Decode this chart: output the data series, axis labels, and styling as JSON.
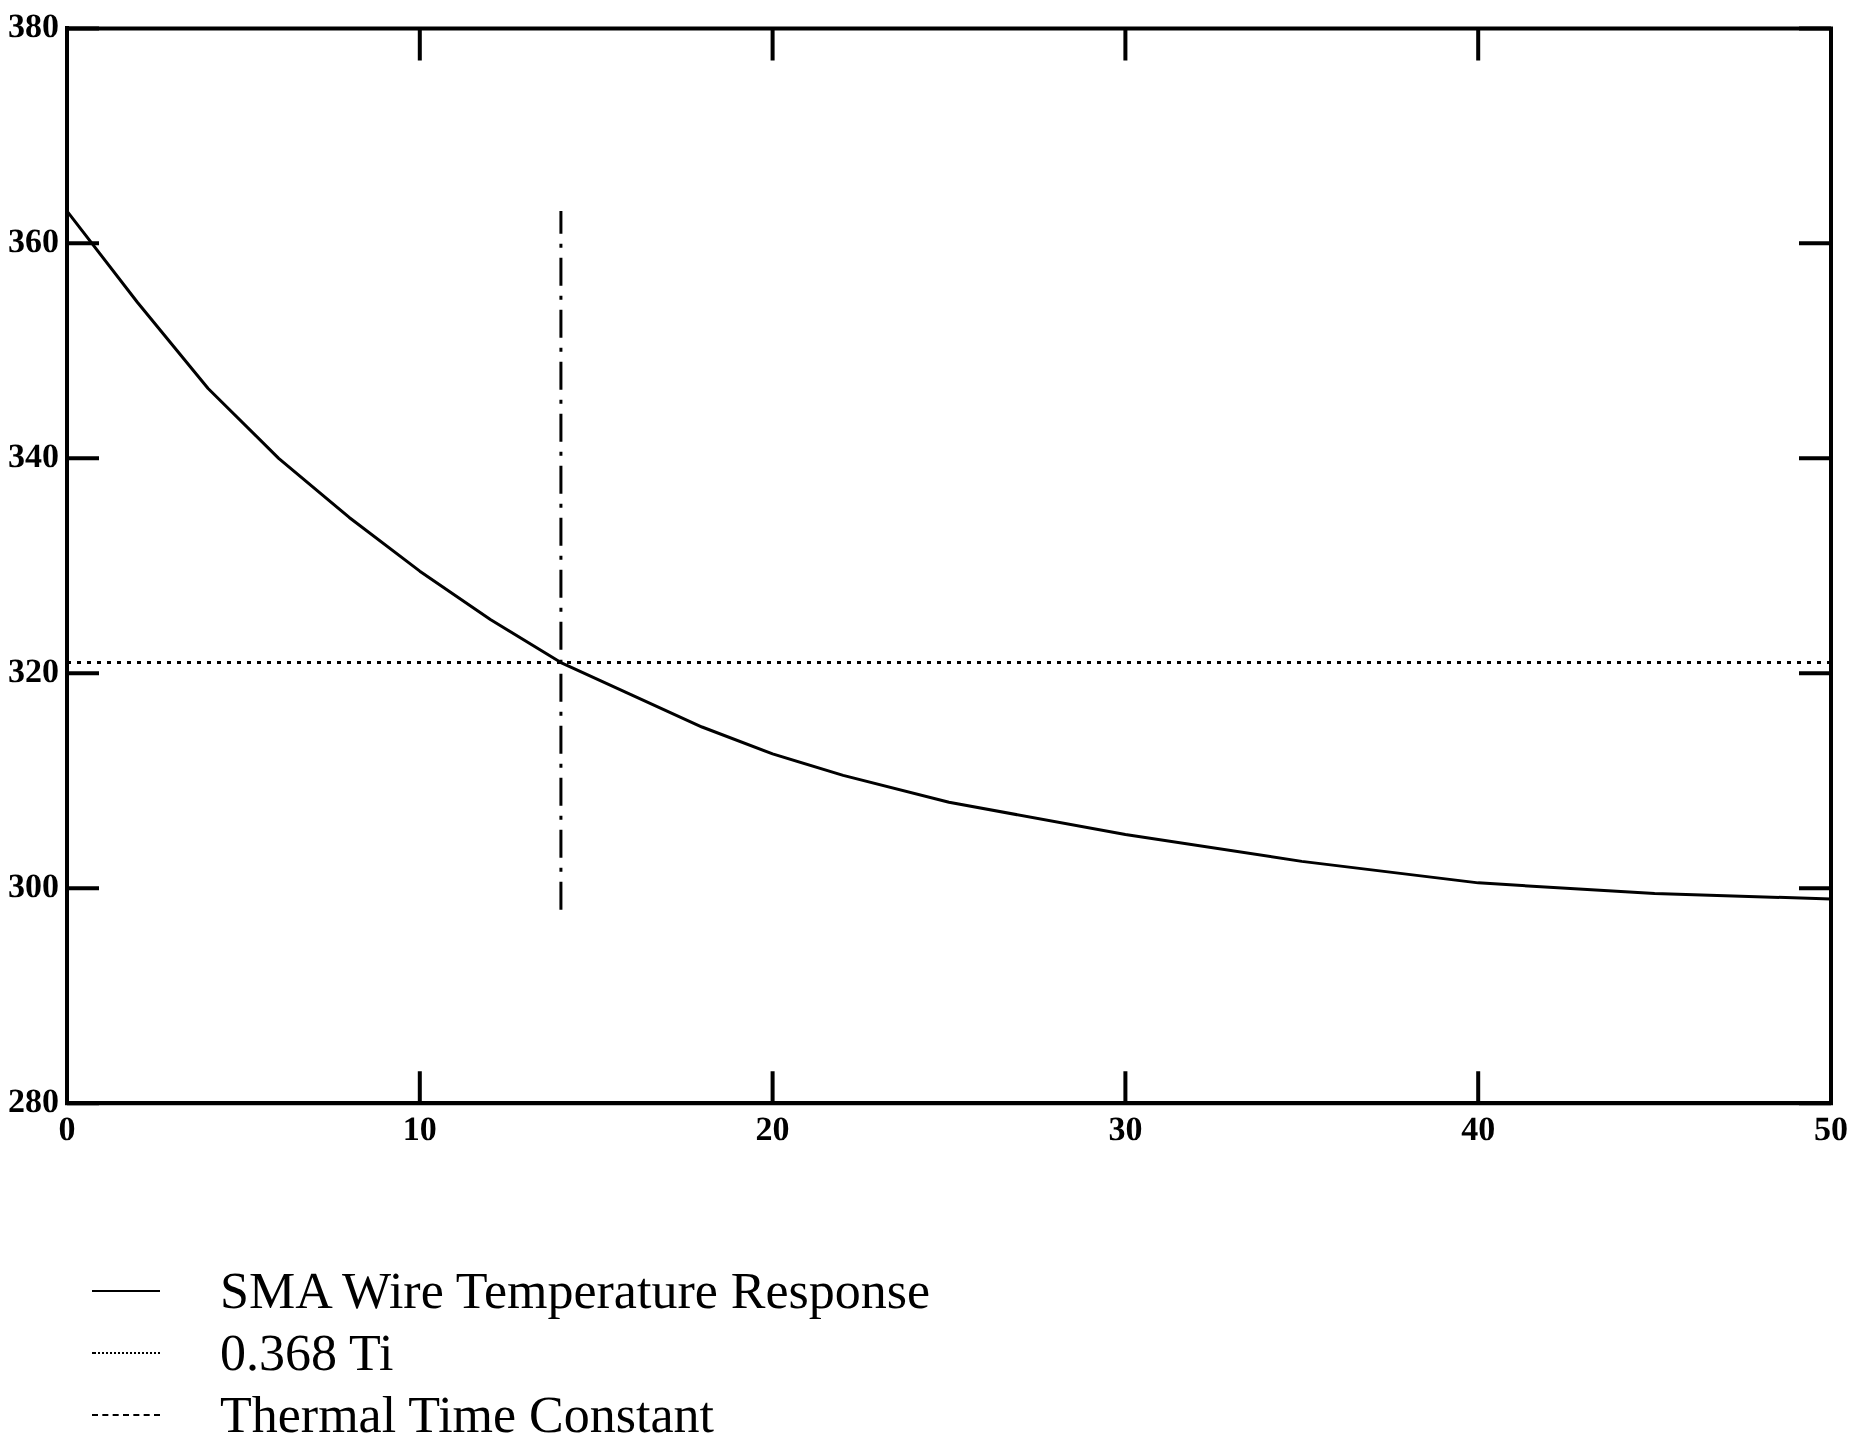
{
  "chart_data": {
    "type": "line",
    "xlim": [
      0,
      50
    ],
    "xticks": [
      0,
      10,
      20,
      30,
      40,
      50
    ],
    "ylim": [
      280,
      380
    ],
    "yticks": [
      280,
      300,
      320,
      340,
      360,
      380
    ],
    "grid": false,
    "legend": "bottom left",
    "marker": "none",
    "series": [
      {
        "name": "SMA Wire Temperature Response",
        "color": "#000000",
        "line_style": "solid",
        "x": [
          0,
          2,
          4,
          6,
          8,
          10,
          12,
          14,
          16,
          18,
          20,
          22,
          25,
          30,
          35,
          40,
          45,
          50
        ],
        "values": [
          363,
          354.5,
          346.5,
          340,
          334.5,
          329.5,
          325,
          321,
          318,
          315,
          312.5,
          310.5,
          308,
          305,
          302.5,
          300.5,
          299.5,
          299
        ]
      },
      {
        "name": "0.368 Ti",
        "color": "#000000",
        "line_style": "dotted",
        "x": [
          0,
          50
        ],
        "values": [
          321,
          321
        ]
      },
      {
        "name": "Thermal Time Constant",
        "color": "#000000",
        "line_style": "dashed",
        "x": [
          14,
          14
        ],
        "values": [
          298,
          363
        ]
      }
    ]
  }
}
